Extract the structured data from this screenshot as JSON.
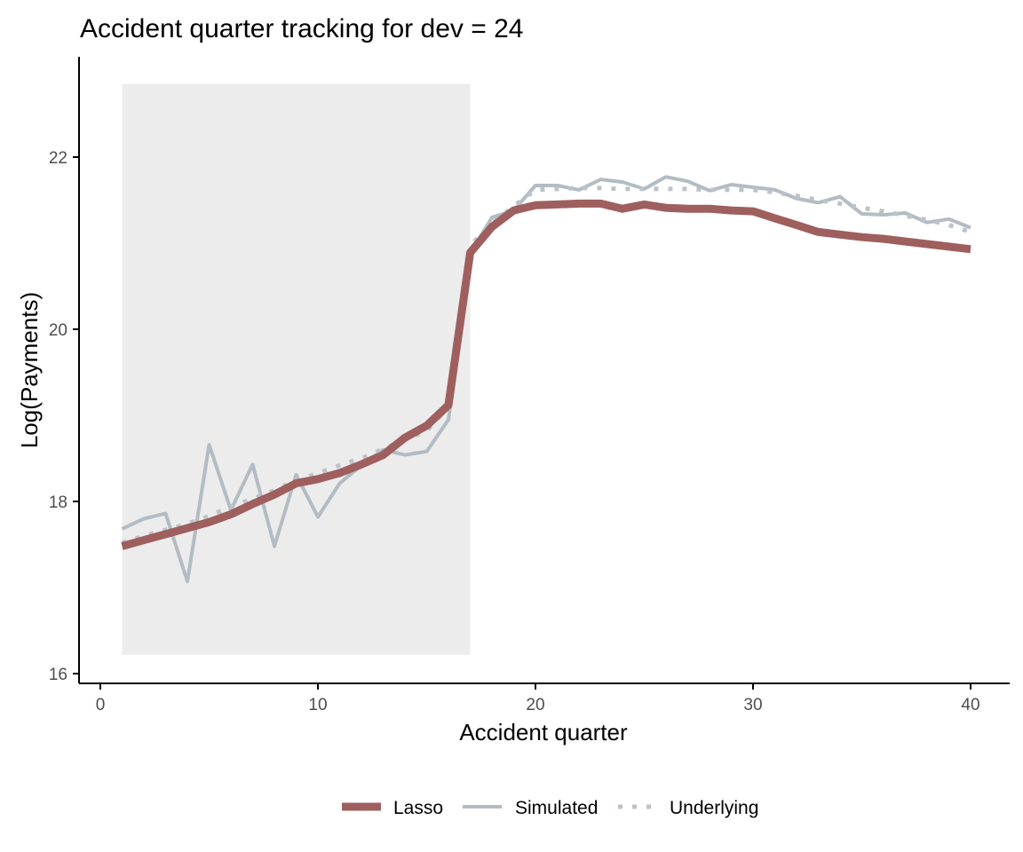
{
  "chart_data": {
    "type": "line",
    "title": "Accident quarter tracking for dev = 24",
    "xlabel": "Accident quarter",
    "ylabel": "Log(Payments)",
    "xlim": [
      -1,
      42
    ],
    "ylim": [
      15.95,
      23.2
    ],
    "xticks": [
      0,
      10,
      20,
      30,
      40
    ],
    "yticks": [
      16,
      18,
      20,
      22
    ],
    "grid": false,
    "legend_position": "bottom",
    "shaded_region": {
      "x": [
        1,
        17
      ],
      "y": [
        16.22,
        22.85
      ],
      "color": "#ececec"
    },
    "x": [
      1,
      2,
      3,
      4,
      5,
      6,
      7,
      8,
      9,
      10,
      11,
      12,
      13,
      14,
      15,
      16,
      17,
      18,
      19,
      20,
      21,
      22,
      23,
      24,
      25,
      26,
      27,
      28,
      29,
      30,
      31,
      32,
      33,
      34,
      35,
      36,
      37,
      38,
      39,
      40
    ],
    "series": [
      {
        "name": "Lasso",
        "color": "#9e5f5e",
        "style": "solid-thick",
        "values": [
          17.48,
          17.55,
          17.62,
          17.69,
          17.76,
          17.85,
          17.97,
          18.08,
          18.21,
          18.26,
          18.33,
          18.43,
          18.54,
          18.74,
          18.88,
          19.12,
          20.89,
          21.19,
          21.38,
          21.44,
          21.45,
          21.46,
          21.46,
          21.4,
          21.45,
          21.41,
          21.4,
          21.4,
          21.38,
          21.37,
          21.29,
          21.21,
          21.13,
          21.1,
          21.07,
          21.05,
          21.02,
          20.99,
          20.96,
          20.93
        ]
      },
      {
        "name": "Simulated",
        "color": "#b3bbc3",
        "style": "solid",
        "values": [
          17.68,
          17.8,
          17.86,
          17.07,
          18.66,
          17.9,
          18.43,
          17.48,
          18.31,
          17.82,
          18.21,
          18.42,
          18.6,
          18.54,
          18.58,
          18.95,
          20.88,
          21.3,
          21.38,
          21.67,
          21.67,
          21.62,
          21.74,
          21.71,
          21.63,
          21.77,
          21.72,
          21.61,
          21.68,
          21.65,
          21.62,
          21.52,
          21.47,
          21.54,
          21.34,
          21.33,
          21.35,
          21.24,
          21.28,
          21.18
        ]
      },
      {
        "name": "Underlying",
        "color": "#bcc3ca",
        "style": "dotted",
        "values": [
          17.52,
          17.6,
          17.67,
          17.74,
          17.83,
          17.94,
          18.03,
          18.13,
          18.24,
          18.33,
          18.42,
          18.5,
          18.61,
          18.72,
          18.82,
          19.1,
          20.97,
          21.23,
          21.43,
          21.62,
          21.63,
          21.64,
          21.64,
          21.63,
          21.63,
          21.63,
          21.63,
          21.62,
          21.62,
          21.62,
          21.59,
          21.55,
          21.5,
          21.46,
          21.41,
          21.37,
          21.32,
          21.27,
          21.21,
          21.13
        ]
      }
    ]
  }
}
